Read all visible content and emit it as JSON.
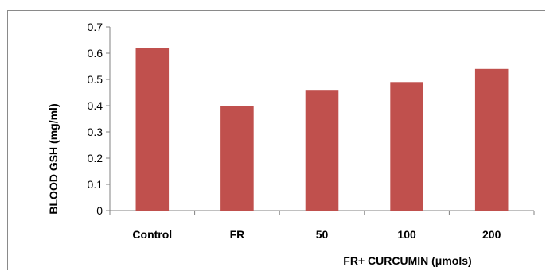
{
  "chart_data": {
    "type": "bar",
    "categories": [
      "Control",
      "FR",
      "50",
      "100",
      "200"
    ],
    "values": [
      0.62,
      0.4,
      0.46,
      0.49,
      0.54
    ],
    "ylabel": "BLOOD GSH (mg/ml)",
    "xlabel": "FR+ CURCUMIN (μmols)",
    "ylim": [
      0,
      0.7
    ],
    "yticks": [
      "0",
      "0.1",
      "0.2",
      "0.3",
      "0.4",
      "0.5",
      "0.6",
      "0.7"
    ],
    "bar_color": "#c0504d",
    "grid": false,
    "legend": "none"
  }
}
